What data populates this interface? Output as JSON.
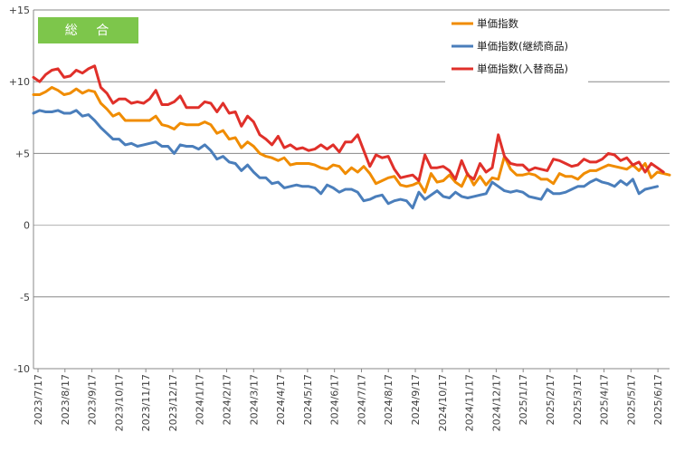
{
  "chart_data": {
    "type": "line",
    "title": "",
    "badge": "総 合",
    "xlabel": "",
    "ylabel": "",
    "ylim": [
      -10,
      15
    ],
    "yticks": [
      {
        "value": 15,
        "label": "+15"
      },
      {
        "value": 10,
        "label": "+10"
      },
      {
        "value": 5,
        "label": "+5"
      },
      {
        "value": 0,
        "label": "0"
      },
      {
        "value": -5,
        "label": "-5"
      },
      {
        "value": -10,
        "label": "-10"
      }
    ],
    "xtick_labels": [
      "2023/7/17",
      "2023/8/17",
      "2023/9/17",
      "2023/10/17",
      "2023/11/17",
      "2023/12/17",
      "2024/1/17",
      "2024/2/17",
      "2024/3/17",
      "2024/4/17",
      "2024/5/17",
      "2024/6/17",
      "2024/7/17",
      "2024/8/17",
      "2024/9/17",
      "2024/10/17",
      "2024/11/17",
      "2024/12/17",
      "2025/1/17",
      "2025/2/17",
      "2025/3/17",
      "2025/4/17",
      "2025/5/17",
      "2025/6/17"
    ],
    "grid": true,
    "legend_position": "top-right",
    "colors": {
      "badge": "#7dc64b",
      "grid": "#888888",
      "axis": "#888888"
    },
    "series": [
      {
        "name": "単価指数",
        "color": "#f08c00",
        "values": [
          9.1,
          9.1,
          9.3,
          9.6,
          9.4,
          9.1,
          9.2,
          9.5,
          9.2,
          9.4,
          9.3,
          8.5,
          8.1,
          7.6,
          7.8,
          7.3,
          7.3,
          7.3,
          7.3,
          7.3,
          7.6,
          7.0,
          6.9,
          6.7,
          7.1,
          7.0,
          7.0,
          7.0,
          7.2,
          7.0,
          6.4,
          6.6,
          6.0,
          6.1,
          5.4,
          5.8,
          5.5,
          5.0,
          4.8,
          4.7,
          4.5,
          4.7,
          4.2,
          4.3,
          4.3,
          4.3,
          4.2,
          4.0,
          3.9,
          4.2,
          4.1,
          3.6,
          4.0,
          3.7,
          4.1,
          3.6,
          2.9,
          3.1,
          3.3,
          3.4,
          2.8,
          2.7,
          2.8,
          3.0,
          2.3,
          3.6,
          3.0,
          3.1,
          3.5,
          3.0,
          2.7,
          3.6,
          2.8,
          3.4,
          2.8,
          3.3,
          3.2,
          4.8,
          3.9,
          3.5,
          3.5,
          3.6,
          3.5,
          3.2,
          3.2,
          2.9,
          3.6,
          3.4,
          3.4,
          3.2,
          3.6,
          3.8,
          3.8,
          4.0,
          4.2,
          4.1,
          4.0,
          3.9,
          4.2,
          3.8,
          4.3,
          3.3,
          3.7,
          3.6,
          3.5
        ]
      },
      {
        "name": "単価指数(継続商品)",
        "color": "#4a7ebb",
        "values": [
          7.8,
          8.0,
          7.9,
          7.9,
          8.0,
          7.8,
          7.8,
          8.0,
          7.6,
          7.7,
          7.3,
          6.8,
          6.4,
          6.0,
          6.0,
          5.6,
          5.7,
          5.5,
          5.6,
          5.7,
          5.8,
          5.5,
          5.5,
          5.0,
          5.6,
          5.5,
          5.5,
          5.3,
          5.6,
          5.2,
          4.6,
          4.8,
          4.4,
          4.3,
          3.8,
          4.2,
          3.7,
          3.3,
          3.3,
          2.9,
          3.0,
          2.6,
          2.7,
          2.8,
          2.7,
          2.7,
          2.6,
          2.2,
          2.8,
          2.6,
          2.3,
          2.5,
          2.5,
          2.3,
          1.7,
          1.8,
          2.0,
          2.1,
          1.5,
          1.7,
          1.8,
          1.7,
          1.2,
          2.3,
          1.8,
          2.1,
          2.4,
          2.0,
          1.9,
          2.3,
          2.0,
          1.9,
          2.0,
          2.1,
          2.2,
          3.0,
          2.7,
          2.4,
          2.3,
          2.4,
          2.3,
          2.0,
          1.9,
          1.8,
          2.5,
          2.2,
          2.2,
          2.3,
          2.5,
          2.7,
          2.7,
          3.0,
          3.2,
          3.0,
          2.9,
          2.7,
          3.1,
          2.8,
          3.2,
          2.2,
          2.5,
          2.6,
          2.7
        ]
      },
      {
        "name": "単価指数(入替商品)",
        "color": "#e0302a",
        "values": [
          10.3,
          10.0,
          10.5,
          10.8,
          10.9,
          10.3,
          10.4,
          10.8,
          10.6,
          10.9,
          11.1,
          9.6,
          9.2,
          8.5,
          8.8,
          8.8,
          8.5,
          8.6,
          8.5,
          8.8,
          9.4,
          8.4,
          8.4,
          8.6,
          9.0,
          8.2,
          8.2,
          8.2,
          8.6,
          8.5,
          7.9,
          8.5,
          7.8,
          7.9,
          6.9,
          7.6,
          7.2,
          6.3,
          6.0,
          5.6,
          6.2,
          5.4,
          5.6,
          5.3,
          5.4,
          5.2,
          5.3,
          5.6,
          5.3,
          5.6,
          5.1,
          5.8,
          5.8,
          6.3,
          5.2,
          4.1,
          4.9,
          4.7,
          4.8,
          3.9,
          3.3,
          3.4,
          3.5,
          3.1,
          4.9,
          4.0,
          4.0,
          4.1,
          3.8,
          3.2,
          4.5,
          3.5,
          3.2,
          4.3,
          3.7,
          4.0,
          6.3,
          4.8,
          4.3,
          4.2,
          4.2,
          3.8,
          4.0,
          3.9,
          3.8,
          4.6,
          4.5,
          4.3,
          4.1,
          4.2,
          4.6,
          4.4,
          4.4,
          4.6,
          5.0,
          4.9,
          4.5,
          4.7,
          4.2,
          4.4,
          3.7,
          4.3,
          4.0,
          3.7
        ]
      }
    ]
  }
}
